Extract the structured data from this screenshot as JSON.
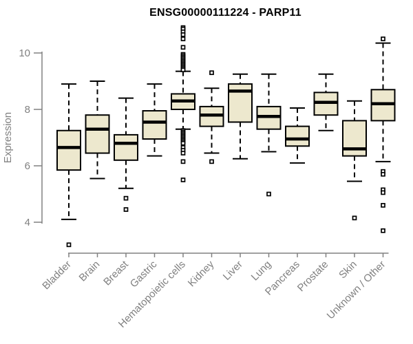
{
  "title": "ENSG00000111224 - PARP11",
  "colors": {
    "box_fill": "#EDE8CE",
    "box_border": "#000000",
    "median_line": "#000000",
    "whisker": "#000000",
    "outlier": "#000000",
    "axis": "#808080",
    "tick_label": "#808080",
    "title_text": "#000000",
    "background": "#FFFFFF"
  },
  "chart_data": {
    "type": "boxplot",
    "title": "ENSG00000111224 - PARP11",
    "xlabel": "",
    "ylabel": "Expression",
    "ylim": [
      4,
      10
    ],
    "yticks": [
      4,
      6,
      8,
      10
    ],
    "grid": false,
    "legend": false,
    "categories": [
      "Bladder",
      "Brain",
      "Breast",
      "Gastric",
      "Hematopoietic cells",
      "Kidney",
      "Liver",
      "Lung",
      "Pancreas",
      "Prostate",
      "Skin",
      "Unknown / Other"
    ],
    "boxes": [
      {
        "label": "Bladder",
        "whisker_low": 4.1,
        "q1": 5.85,
        "median": 6.65,
        "q3": 7.25,
        "whisker_high": 8.9,
        "outliers": [
          3.2
        ]
      },
      {
        "label": "Brain",
        "whisker_low": 5.55,
        "q1": 6.45,
        "median": 7.3,
        "q3": 7.8,
        "whisker_high": 9.0,
        "outliers": []
      },
      {
        "label": "Breast",
        "whisker_low": 5.2,
        "q1": 6.2,
        "median": 6.8,
        "q3": 7.1,
        "whisker_high": 8.4,
        "outliers": [
          4.85,
          4.45
        ]
      },
      {
        "label": "Gastric",
        "whisker_low": 6.35,
        "q1": 6.95,
        "median": 7.55,
        "q3": 7.95,
        "whisker_high": 8.9,
        "outliers": []
      },
      {
        "label": "Hematopoietic cells",
        "whisker_low": 7.3,
        "q1": 8.0,
        "median": 8.3,
        "q3": 8.55,
        "whisker_high": 9.35,
        "outliers": [
          10.9,
          10.85,
          10.75,
          10.65,
          10.5,
          10.2,
          9.95,
          9.9,
          9.85,
          9.8,
          9.75,
          9.7,
          9.65,
          9.6,
          9.55,
          9.5,
          9.45,
          9.4,
          7.25,
          7.2,
          7.15,
          7.1,
          7.05,
          7.0,
          6.95,
          6.9,
          6.85,
          6.8,
          6.65,
          6.55,
          6.45,
          6.15,
          5.5
        ]
      },
      {
        "label": "Kidney",
        "whisker_low": 6.45,
        "q1": 7.4,
        "median": 7.8,
        "q3": 8.1,
        "whisker_high": 8.75,
        "outliers": [
          9.3,
          6.15
        ]
      },
      {
        "label": "Liver",
        "whisker_low": 6.25,
        "q1": 7.55,
        "median": 8.65,
        "q3": 8.9,
        "whisker_high": 9.25,
        "outliers": []
      },
      {
        "label": "Lung",
        "whisker_low": 6.5,
        "q1": 7.3,
        "median": 7.75,
        "q3": 8.1,
        "whisker_high": 9.25,
        "outliers": [
          5.0
        ]
      },
      {
        "label": "Pancreas",
        "whisker_low": 6.1,
        "q1": 6.7,
        "median": 6.95,
        "q3": 7.4,
        "whisker_high": 8.05,
        "outliers": []
      },
      {
        "label": "Prostate",
        "whisker_low": 7.25,
        "q1": 7.8,
        "median": 8.25,
        "q3": 8.6,
        "whisker_high": 9.25,
        "outliers": []
      },
      {
        "label": "Skin",
        "whisker_low": 5.45,
        "q1": 6.35,
        "median": 6.6,
        "q3": 7.6,
        "whisker_high": 8.3,
        "outliers": [
          4.15
        ]
      },
      {
        "label": "Unknown / Other",
        "whisker_low": 6.15,
        "q1": 7.6,
        "median": 8.2,
        "q3": 8.7,
        "whisker_high": 10.35,
        "outliers": [
          10.5,
          5.8,
          5.7,
          5.15,
          5.05,
          4.6,
          3.7
        ]
      }
    ]
  }
}
